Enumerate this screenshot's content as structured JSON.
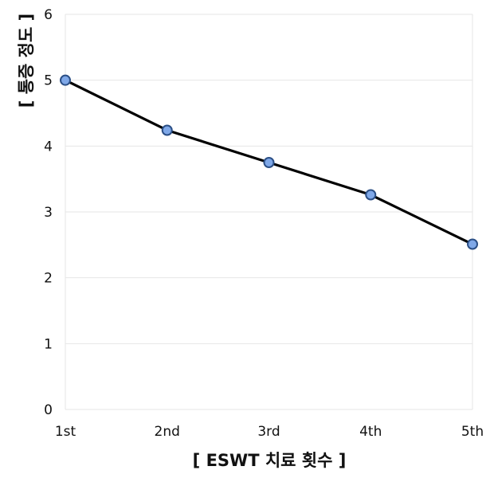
{
  "chart_data": {
    "type": "line",
    "categories": [
      "1st",
      "2nd",
      "3rd",
      "4th",
      "5th"
    ],
    "series": [
      {
        "values": [
          5.0,
          4.24,
          3.75,
          3.26,
          2.51
        ],
        "line_color": "#000000",
        "marker_fill": "#7fa8e8",
        "marker_stroke": "#2b4f86"
      }
    ],
    "xlabel": "[ ESWT 치료 횟수 ]",
    "ylabel": "[ 통증 정도 ]",
    "ylim": [
      0,
      6
    ],
    "yticks": [
      "0",
      "1",
      "2",
      "3",
      "4",
      "5",
      "6"
    ],
    "grid": "horizontal",
    "grid_color": "#e6e6e6"
  }
}
